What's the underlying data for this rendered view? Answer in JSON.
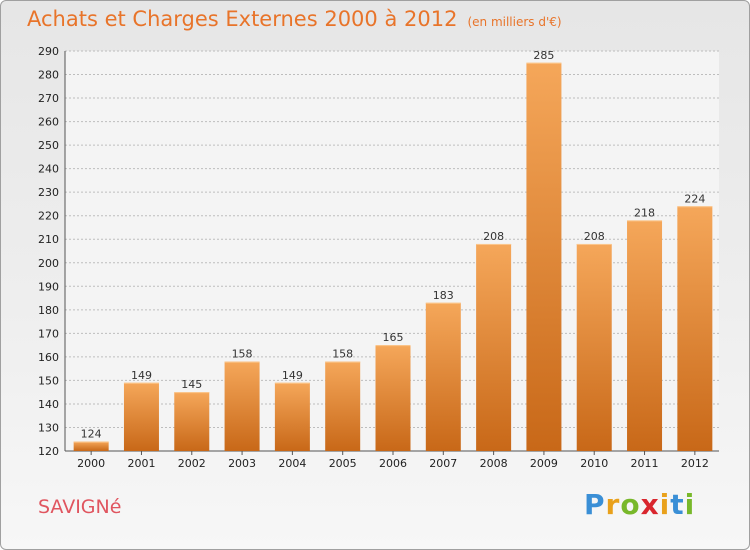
{
  "header": {
    "title": "Achats et Charges Externes 2000 à 2012",
    "unit": "(en milliers d'€)"
  },
  "footer": {
    "commune": "SAVIGNé",
    "brand": "Proxiti"
  },
  "colors": {
    "bar_light": "#f5a75a",
    "bar_dark": "#c86818",
    "title": "#e8742a",
    "commune": "#e0555f"
  },
  "chart_data": {
    "type": "bar",
    "title": "Achats et Charges Externes 2000 à 2012",
    "subtitle": "(en milliers d'€)",
    "categories": [
      "2000",
      "2001",
      "2002",
      "2003",
      "2004",
      "2005",
      "2006",
      "2007",
      "2008",
      "2009",
      "2010",
      "2011",
      "2012"
    ],
    "values": [
      124,
      149,
      145,
      158,
      149,
      158,
      165,
      183,
      208,
      285,
      208,
      218,
      224
    ],
    "ylim": [
      120,
      290
    ],
    "ytick_step": 10,
    "grid": true,
    "legend": "none"
  }
}
